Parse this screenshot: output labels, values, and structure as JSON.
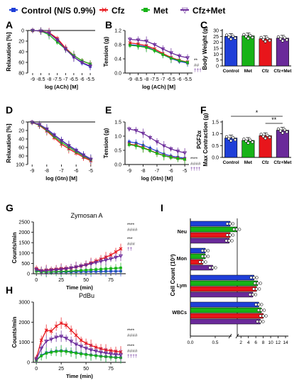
{
  "colors": {
    "control": "#1f3fd8",
    "cfz": "#e8151b",
    "met": "#17b317",
    "cfzmet": "#6a2a9a"
  },
  "legend": {
    "items": [
      {
        "label": "Control (N/S 0.9%)",
        "color": "#1f3fd8"
      },
      {
        "label": "Cfz",
        "color": "#e8151b"
      },
      {
        "label": "Met",
        "color": "#17b317"
      },
      {
        "label": "Cfz+Met",
        "color": "#6a2a9a"
      }
    ]
  },
  "chart_data": [
    {
      "panel": "A",
      "type": "line",
      "xlabel": "log (ACh) [M]",
      "ylabel": "Relaxation [%]",
      "xticks": [
        "-9",
        "-8.5",
        "-8",
        "-7.5",
        "-7",
        "-6.5",
        "-6",
        "-5.5"
      ],
      "yticks": [
        "0",
        "20",
        "40",
        "60",
        "80"
      ],
      "xlim": [
        -9.3,
        -5.2
      ],
      "ylim": [
        0,
        80
      ],
      "y_inverted": true,
      "x": [
        -9,
        -8.5,
        -8,
        -7.5,
        -7,
        -6.5,
        -6,
        -5.5
      ],
      "series": [
        {
          "name": "Control",
          "values": [
            0,
            1,
            5,
            17,
            35,
            50,
            61,
            68
          ]
        },
        {
          "name": "Cfz",
          "values": [
            0,
            1,
            4,
            15,
            33,
            47,
            57,
            63
          ]
        },
        {
          "name": "Met",
          "values": [
            0,
            1,
            8,
            22,
            35,
            47,
            57,
            63
          ]
        },
        {
          "name": "Cfz+Met",
          "values": [
            0,
            1,
            5,
            18,
            35,
            50,
            60,
            67
          ]
        }
      ]
    },
    {
      "panel": "B",
      "type": "line",
      "xlabel": "log (ACh) [M]",
      "ylabel": "Tension (g)",
      "xticks": [
        "-9",
        "-8.5",
        "-8",
        "-7.5",
        "-7",
        "-6.5",
        "-6",
        "-5.5"
      ],
      "yticks": [
        "0.0",
        "0.4",
        "0.8",
        "1.2"
      ],
      "xlim": [
        -9.3,
        -5.2
      ],
      "ylim": [
        0,
        1.2
      ],
      "x": [
        -9,
        -8.5,
        -8,
        -7.5,
        -7,
        -6.5,
        -6,
        -5.5
      ],
      "series": [
        {
          "name": "Control",
          "values": [
            0.8,
            0.78,
            0.74,
            0.64,
            0.52,
            0.41,
            0.33,
            0.28
          ]
        },
        {
          "name": "Cfz",
          "values": [
            0.85,
            0.82,
            0.77,
            0.68,
            0.55,
            0.44,
            0.36,
            0.31
          ]
        },
        {
          "name": "Met",
          "values": [
            0.78,
            0.76,
            0.72,
            0.63,
            0.52,
            0.42,
            0.35,
            0.3
          ]
        },
        {
          "name": "Cfz+Met",
          "values": [
            0.95,
            0.93,
            0.9,
            0.8,
            0.68,
            0.57,
            0.48,
            0.43
          ]
        }
      ],
      "annotations": [
        "**",
        "##",
        "†††"
      ]
    },
    {
      "panel": "C",
      "type": "bar",
      "ylabel": "Body Weight (g)",
      "categories": [
        "Control",
        "Met",
        "Cfz",
        "Cfz+Met"
      ],
      "values": [
        25,
        25.5,
        23,
        23.5
      ],
      "yticks": [
        "0",
        "5",
        "10",
        "15",
        "20",
        "25",
        "30"
      ],
      "ylim": [
        0,
        30
      ]
    },
    {
      "panel": "D",
      "type": "line",
      "xlabel": "log (Gtn) [M]",
      "ylabel": "Relaxation [%]",
      "xticks": [
        "-9",
        "-8",
        "-7",
        "-6",
        "-5"
      ],
      "yticks": [
        "0",
        "20",
        "40",
        "60",
        "80",
        "100"
      ],
      "xlim": [
        -9.3,
        -4.7
      ],
      "ylim": [
        0,
        100
      ],
      "y_inverted": true,
      "x": [
        -9,
        -8.5,
        -8,
        -7.5,
        -7,
        -6.5,
        -6,
        -5.5,
        -5
      ],
      "series": [
        {
          "name": "Control",
          "values": [
            1,
            6,
            16,
            30,
            43,
            55,
            66,
            77,
            87
          ]
        },
        {
          "name": "Cfz",
          "values": [
            1,
            8,
            21,
            37,
            52,
            63,
            73,
            83,
            91
          ]
        },
        {
          "name": "Met",
          "values": [
            1,
            7,
            19,
            34,
            48,
            59,
            70,
            80,
            89
          ]
        },
        {
          "name": "Cfz+Met",
          "values": [
            1,
            6,
            17,
            31,
            44,
            56,
            67,
            78,
            88
          ]
        }
      ]
    },
    {
      "panel": "E",
      "type": "line",
      "xlabel": "log (Gtn) [M]",
      "ylabel": "Tension (g)",
      "xticks": [
        "-9",
        "-8",
        "-7",
        "-6",
        "-5"
      ],
      "yticks": [
        "0.0",
        "0.5",
        "1.0",
        "1.5"
      ],
      "xlim": [
        -9.3,
        -4.7
      ],
      "ylim": [
        0,
        1.5
      ],
      "x": [
        -9,
        -8.5,
        -8,
        -7.5,
        -7,
        -6.5,
        -6,
        -5.5,
        -5
      ],
      "series": [
        {
          "name": "Control",
          "values": [
            0.8,
            0.76,
            0.68,
            0.58,
            0.47,
            0.37,
            0.3,
            0.26,
            0.22
          ]
        },
        {
          "name": "Cfz",
          "values": [
            0.72,
            0.68,
            0.6,
            0.5,
            0.4,
            0.32,
            0.26,
            0.22,
            0.19
          ]
        },
        {
          "name": "Met",
          "values": [
            0.7,
            0.66,
            0.58,
            0.49,
            0.39,
            0.31,
            0.25,
            0.21,
            0.18
          ]
        },
        {
          "name": "Cfz+Met",
          "values": [
            1.25,
            1.2,
            1.1,
            0.95,
            0.8,
            0.66,
            0.55,
            0.47,
            0.41
          ]
        }
      ],
      "annotations": [
        "****",
        "####",
        "††††"
      ]
    },
    {
      "panel": "F",
      "type": "bar",
      "ylabel": "PGF2α Max Contraction (g)",
      "categories": [
        "Control",
        "Met",
        "Cfz",
        "Cfz+Met"
      ],
      "values": [
        0.82,
        0.72,
        0.92,
        1.15
      ],
      "yticks": [
        "0.0",
        "0.5",
        "1.0",
        "1.5"
      ],
      "ylim": [
        0,
        1.5
      ],
      "annotations": [
        "*",
        "**"
      ]
    },
    {
      "panel": "G",
      "type": "line",
      "title": "Zymosan A",
      "xlabel": "Time (min)",
      "ylabel": "Counts/min",
      "xticks": [
        "0",
        "25",
        "50",
        "75"
      ],
      "yticks": [
        "0",
        "500",
        "1000",
        "1500",
        "2000",
        "2500"
      ],
      "xlim": [
        -3,
        90
      ],
      "ylim": [
        0,
        2500
      ],
      "x": [
        0,
        5,
        10,
        15,
        20,
        25,
        30,
        35,
        40,
        45,
        50,
        55,
        60,
        65,
        70,
        75,
        80,
        85
      ],
      "series": [
        {
          "name": "Control",
          "values": [
            150,
            90,
            80,
            80,
            85,
            85,
            90,
            90,
            95,
            100,
            100,
            105,
            110,
            110,
            115,
            120,
            120,
            125
          ]
        },
        {
          "name": "Cfz",
          "values": [
            250,
            150,
            180,
            200,
            220,
            250,
            260,
            280,
            330,
            380,
            440,
            520,
            610,
            700,
            800,
            900,
            1050,
            1200
          ]
        },
        {
          "name": "Met",
          "values": [
            120,
            90,
            90,
            95,
            100,
            110,
            120,
            130,
            145,
            160,
            175,
            190,
            205,
            220,
            235,
            250,
            265,
            280
          ]
        },
        {
          "name": "Cfz+Met",
          "values": [
            200,
            130,
            150,
            170,
            190,
            210,
            240,
            280,
            320,
            370,
            420,
            480,
            540,
            600,
            660,
            720,
            790,
            860
          ]
        }
      ],
      "annotations": [
        "****",
        "####",
        "***",
        "###",
        "††"
      ]
    },
    {
      "panel": "H",
      "type": "line",
      "title": "PdBu",
      "xlabel": "Time (min)",
      "ylabel": "Counts/min",
      "xticks": [
        "0",
        "25",
        "50",
        "75"
      ],
      "yticks": [
        "0",
        "1000",
        "2000",
        "3000"
      ],
      "xlim": [
        -3,
        90
      ],
      "ylim": [
        0,
        3000
      ],
      "x": [
        0,
        5,
        10,
        15,
        20,
        25,
        30,
        35,
        40,
        45,
        50,
        55,
        60,
        65,
        70,
        75,
        80,
        85
      ],
      "series": [
        {
          "name": "Control",
          "values": [
            120,
            350,
            480,
            520,
            560,
            580,
            560,
            520,
            480,
            440,
            400,
            370,
            340,
            310,
            290,
            270,
            250,
            240
          ]
        },
        {
          "name": "Cfz",
          "values": [
            200,
            1100,
            1600,
            1550,
            1800,
            1950,
            1850,
            1600,
            1350,
            1100,
            950,
            850,
            750,
            680,
            620,
            580,
            550,
            520
          ]
        },
        {
          "name": "Met",
          "values": [
            100,
            320,
            450,
            500,
            540,
            560,
            540,
            500,
            460,
            420,
            390,
            360,
            330,
            300,
            280,
            260,
            240,
            230
          ]
        },
        {
          "name": "Cfz+Met",
          "values": [
            150,
            700,
            1050,
            1150,
            1250,
            1300,
            1200,
            1050,
            900,
            800,
            700,
            620,
            560,
            500,
            460,
            420,
            390,
            370
          ]
        }
      ],
      "annotations": [
        "****",
        "####",
        "****",
        "####",
        "††††"
      ]
    },
    {
      "panel": "I",
      "type": "bar",
      "orientation": "horizontal",
      "xlabel": "",
      "ylabel": "Cell Count (10³)",
      "groups": [
        "Neu",
        "Mon",
        "Lym",
        "WBCs"
      ],
      "series_order": [
        "Control",
        "Met",
        "Cfz",
        "Cfz+Met"
      ],
      "xticks_left": [
        "0.0",
        "0.5"
      ],
      "xticks_right": [
        "2",
        "4",
        "6",
        "8",
        "10",
        "12",
        "14"
      ],
      "values": {
        "Neu": [
          0.8,
          0.85,
          0.8,
          0.78
        ],
        "Mon": [
          0.3,
          0.3,
          0.25,
          0.45
        ],
        "Lym": [
          5.5,
          6.5,
          6.2,
          5.2
        ],
        "WBCs": [
          6.8,
          7.5,
          8.0,
          7.2
        ]
      }
    }
  ]
}
